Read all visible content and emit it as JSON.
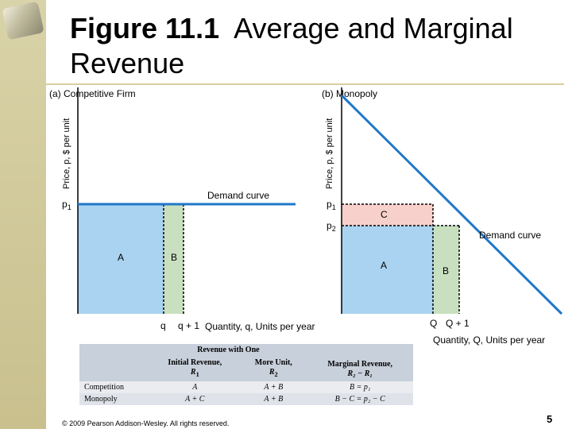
{
  "slide": {
    "title_bold": "Figure 11.1",
    "title_rest": "Average and Marginal Revenue",
    "copyright": "© 2009 Pearson Addison-Wesley. All rights reserved.",
    "page_number": "5"
  },
  "chart_data": [
    {
      "type": "line",
      "title": "(a) Competitive Firm",
      "xlabel": "Quantity, q, Units per year",
      "ylabel": "Price, p, $ per unit",
      "x_ticks": [
        "q",
        "q + 1"
      ],
      "y_ticks": [
        "p"
      ],
      "y_tick_subscripts": [
        "1"
      ],
      "series": [
        {
          "name": "Demand curve",
          "x": [
            0,
            14
          ],
          "y": [
            7,
            7
          ]
        }
      ],
      "regions": [
        "A",
        "B"
      ],
      "colors": {
        "area_A": "#a9d3f0",
        "area_B": "#c8e0c0",
        "demand": "#1f77c9"
      }
    },
    {
      "type": "line",
      "title": "(b) Monopoly",
      "xlabel": "Quantity, Q, Units per year",
      "ylabel": "Price, p, $ per unit",
      "x_ticks": [
        "Q",
        "Q + 1"
      ],
      "y_ticks": [
        "p",
        "p"
      ],
      "y_tick_subscripts": [
        "1",
        "2"
      ],
      "series": [
        {
          "name": "Demand curve",
          "x": [
            0,
            14
          ],
          "y": [
            14,
            0
          ]
        }
      ],
      "regions": [
        "C",
        "A",
        "B"
      ],
      "colors": {
        "area_A": "#a9d3f0",
        "area_B": "#c8e0c0",
        "area_C": "#f7d0cc",
        "demand": "#1f77c9"
      }
    }
  ],
  "table": {
    "headers": {
      "group": "Revenue with One",
      "initial": "Initial Revenue,",
      "initial_sym": "R",
      "initial_sub": "1",
      "more": "More Unit,",
      "more_sym": "R",
      "more_sub": "2",
      "marginal": "Marginal Revenue,",
      "marginal_formula": "R₂ − R₁"
    },
    "rows": [
      {
        "label": "Competition",
        "initial": "A",
        "more": "A + B",
        "marginal": "B = p₁"
      },
      {
        "label": "Monopoly",
        "initial": "A + C",
        "more": "A + B",
        "marginal": "B − C = p₂ − C"
      }
    ]
  }
}
